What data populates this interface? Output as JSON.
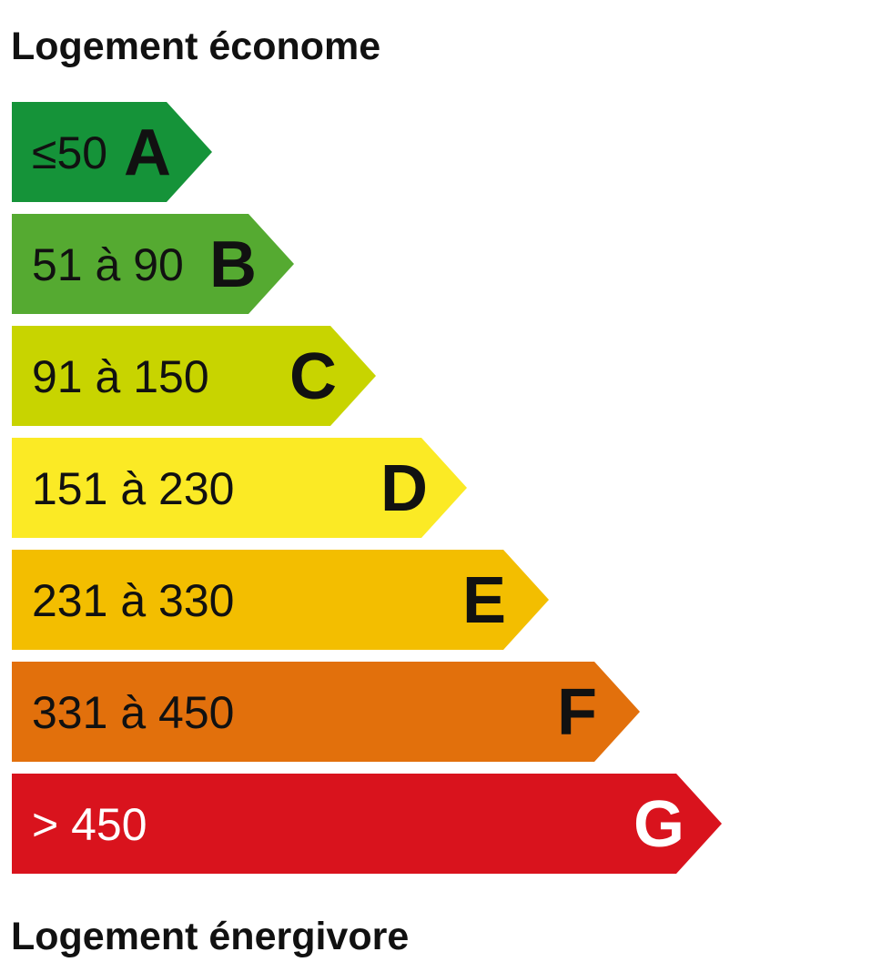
{
  "header": {
    "top_label": "Logement économe",
    "bottom_label": "Logement énergivore"
  },
  "classes": [
    {
      "letter": "A",
      "range": "≤50",
      "color": "#159339",
      "text_color": "#111111"
    },
    {
      "letter": "B",
      "range": "51 à 90",
      "color": "#55aa31",
      "text_color": "#111111"
    },
    {
      "letter": "C",
      "range": "91 à 150",
      "color": "#c8d400",
      "text_color": "#111111"
    },
    {
      "letter": "D",
      "range": "151 à 230",
      "color": "#fbea25",
      "text_color": "#111111"
    },
    {
      "letter": "E",
      "range": "231 à 330",
      "color": "#f3be00",
      "text_color": "#111111"
    },
    {
      "letter": "F",
      "range": "331 à 450",
      "color": "#e2700c",
      "text_color": "#111111"
    },
    {
      "letter": "G",
      "range": "> 450",
      "color": "#d9131d",
      "text_color": "#ffffff"
    }
  ]
}
